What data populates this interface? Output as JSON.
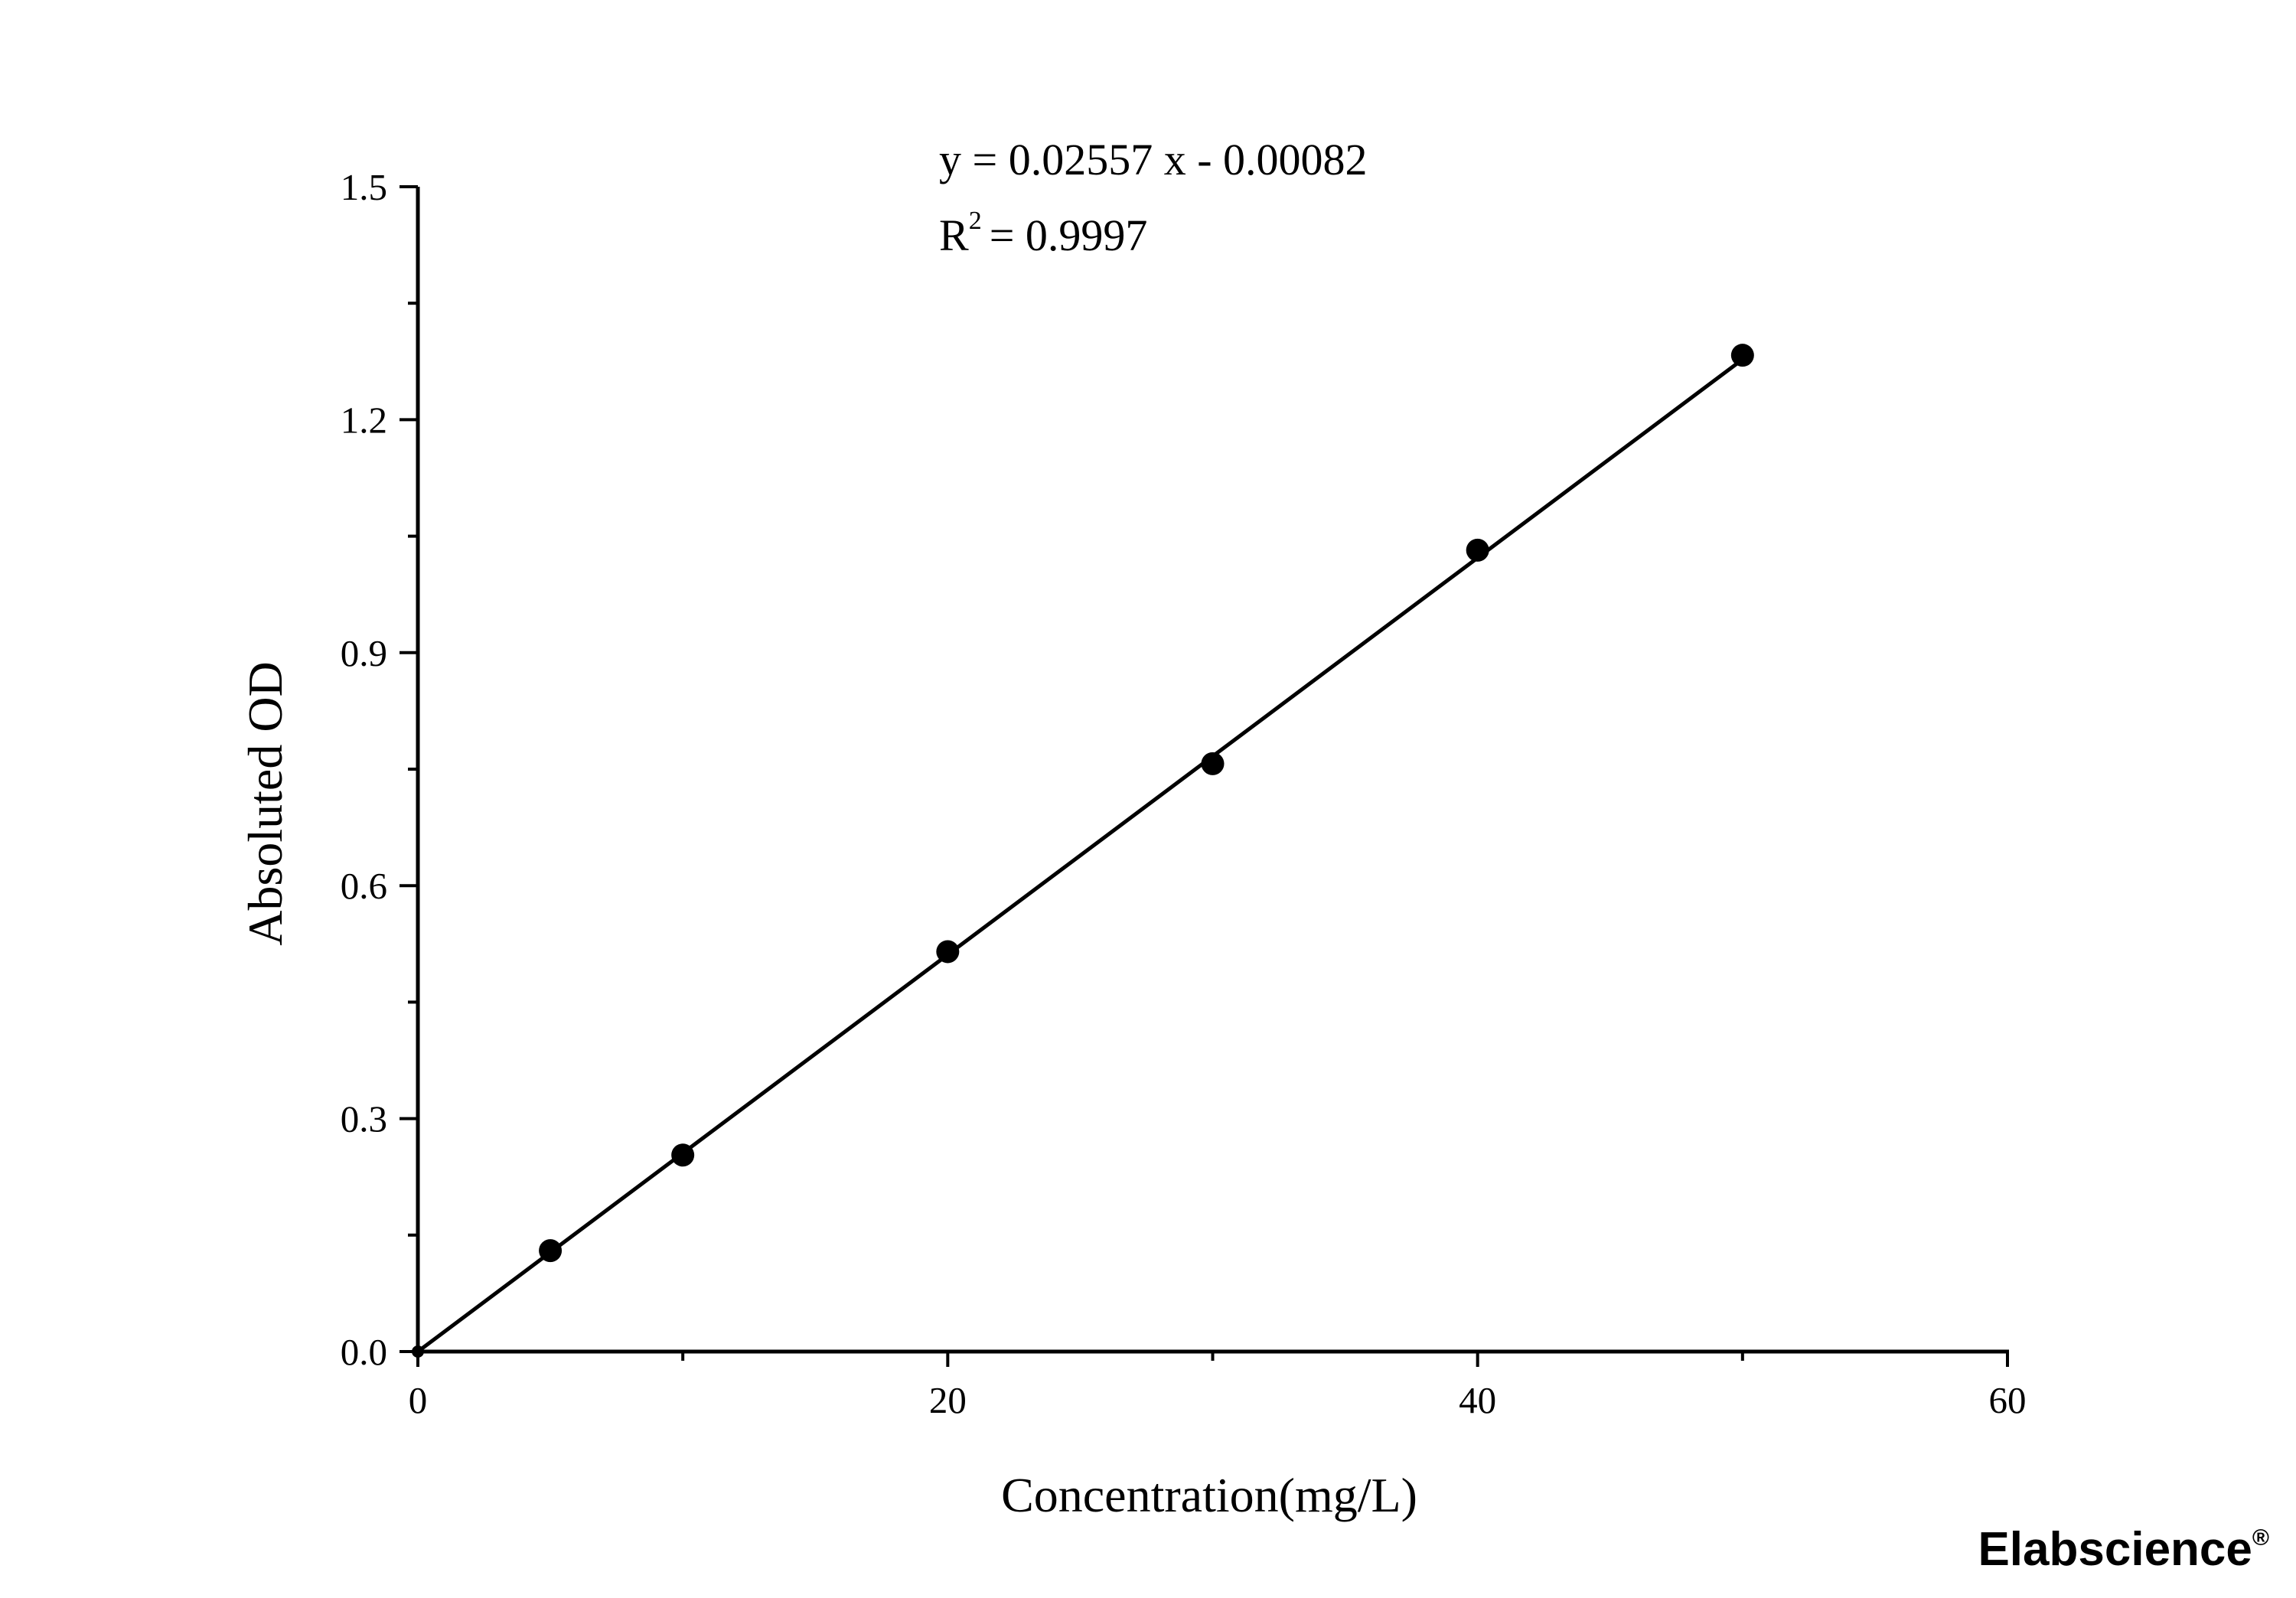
{
  "chart_data": {
    "type": "scatter",
    "title": "",
    "xlabel": "Concentration(mg/L)",
    "ylabel": "Absoluted OD",
    "xlim": [
      0,
      60
    ],
    "ylim": [
      0,
      1.5
    ],
    "x_ticks": [
      "0",
      "20",
      "40",
      "60"
    ],
    "y_ticks": [
      "0.0",
      "0.3",
      "0.6",
      "0.9",
      "1.2",
      "1.5"
    ],
    "x_minor_ticks": [
      10,
      30,
      50
    ],
    "y_minor_ticks": [
      0.15,
      0.45,
      0.75,
      1.05,
      1.35
    ],
    "grid": false,
    "legend": "none",
    "series": [
      {
        "values": [
          {
            "x": 0,
            "y": 0.0
          },
          {
            "x": 5,
            "y": 0.13
          },
          {
            "x": 10,
            "y": 0.253
          },
          {
            "x": 20,
            "y": 0.515
          },
          {
            "x": 30,
            "y": 0.757
          },
          {
            "x": 40,
            "y": 1.032
          },
          {
            "x": 50,
            "y": 1.283
          }
        ]
      }
    ],
    "fit_line": {
      "type": "linear",
      "slope": 0.02557,
      "intercept": -0.00082,
      "x_range": [
        0,
        50
      ]
    },
    "annotations": {
      "equation": "y = 0.02557 x - 0.00082",
      "r2_prefix": "R",
      "r2_exponent": "2",
      "r2_value": "= 0.9997"
    },
    "marker_color": "#000000",
    "line_color": "#000000"
  },
  "watermark": {
    "text": "Elabscience",
    "mark": "®",
    "color": "#ededed"
  }
}
